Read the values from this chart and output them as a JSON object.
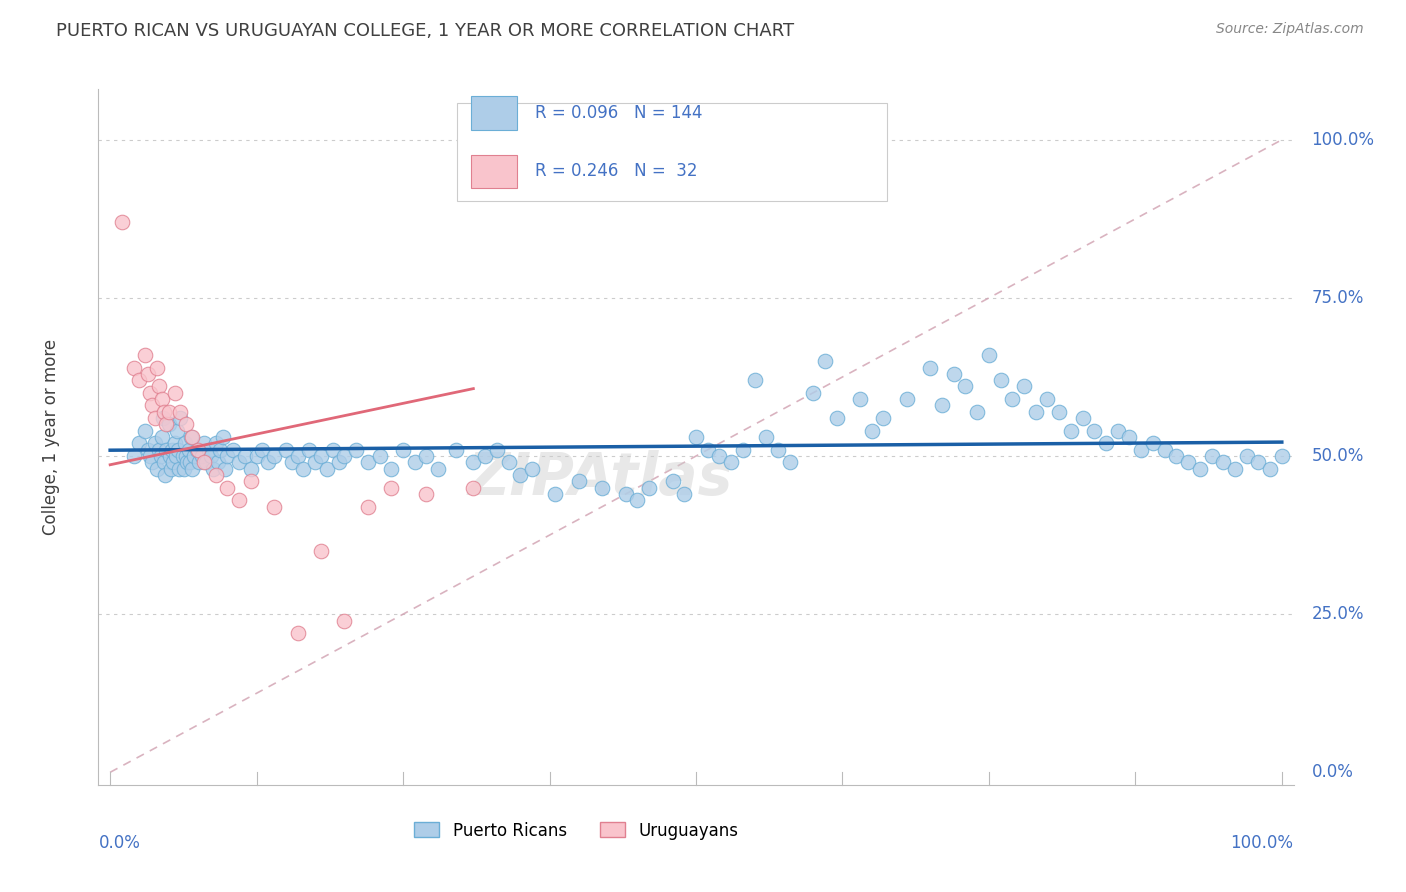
{
  "title": "PUERTO RICAN VS URUGUAYAN COLLEGE, 1 YEAR OR MORE CORRELATION CHART",
  "source": "Source: ZipAtlas.com",
  "ylabel": "College, 1 year or more",
  "ytick_labels": [
    "0.0%",
    "25.0%",
    "50.0%",
    "75.0%",
    "100.0%"
  ],
  "ytick_vals": [
    0.0,
    0.25,
    0.5,
    0.75,
    1.0
  ],
  "watermark": "ZIPAtlas",
  "blue_color_face": "#aecde8",
  "blue_color_edge": "#6baed6",
  "pink_color_face": "#f9c4cc",
  "pink_color_edge": "#e08090",
  "blue_line_color": "#1a5fa6",
  "pink_line_color": "#e06878",
  "diag_line_color": "#d0a0b0",
  "axis_label_color": "#4472c4",
  "grid_color": "#cccccc",
  "blue_x": [
    0.02,
    0.025,
    0.03,
    0.032,
    0.034,
    0.036,
    0.038,
    0.04,
    0.042,
    0.043,
    0.044,
    0.045,
    0.046,
    0.047,
    0.048,
    0.05,
    0.051,
    0.052,
    0.053,
    0.054,
    0.055,
    0.056,
    0.057,
    0.058,
    0.059,
    0.06,
    0.062,
    0.063,
    0.064,
    0.065,
    0.066,
    0.067,
    0.068,
    0.069,
    0.07,
    0.072,
    0.074,
    0.076,
    0.078,
    0.08,
    0.082,
    0.084,
    0.086,
    0.088,
    0.09,
    0.092,
    0.094,
    0.096,
    0.098,
    0.1,
    0.105,
    0.11,
    0.115,
    0.12,
    0.125,
    0.13,
    0.135,
    0.14,
    0.15,
    0.155,
    0.16,
    0.165,
    0.17,
    0.175,
    0.18,
    0.185,
    0.19,
    0.195,
    0.2,
    0.21,
    0.22,
    0.23,
    0.24,
    0.25,
    0.26,
    0.27,
    0.28,
    0.295,
    0.31,
    0.32,
    0.33,
    0.34,
    0.35,
    0.36,
    0.38,
    0.4,
    0.42,
    0.44,
    0.45,
    0.46,
    0.48,
    0.49,
    0.5,
    0.51,
    0.52,
    0.53,
    0.54,
    0.55,
    0.56,
    0.57,
    0.58,
    0.6,
    0.61,
    0.62,
    0.64,
    0.65,
    0.66,
    0.68,
    0.7,
    0.71,
    0.72,
    0.73,
    0.74,
    0.75,
    0.76,
    0.77,
    0.78,
    0.79,
    0.8,
    0.81,
    0.82,
    0.83,
    0.84,
    0.85,
    0.86,
    0.87,
    0.88,
    0.89,
    0.9,
    0.91,
    0.92,
    0.93,
    0.94,
    0.95,
    0.96,
    0.97,
    0.98,
    0.99,
    1.0
  ],
  "blue_y": [
    0.5,
    0.52,
    0.54,
    0.51,
    0.5,
    0.49,
    0.52,
    0.48,
    0.51,
    0.5,
    0.53,
    0.56,
    0.49,
    0.47,
    0.51,
    0.55,
    0.5,
    0.48,
    0.51,
    0.49,
    0.52,
    0.5,
    0.54,
    0.51,
    0.48,
    0.56,
    0.5,
    0.48,
    0.52,
    0.5,
    0.49,
    0.51,
    0.49,
    0.53,
    0.48,
    0.5,
    0.51,
    0.49,
    0.5,
    0.52,
    0.49,
    0.51,
    0.5,
    0.48,
    0.52,
    0.49,
    0.51,
    0.53,
    0.48,
    0.5,
    0.51,
    0.49,
    0.5,
    0.48,
    0.5,
    0.51,
    0.49,
    0.5,
    0.51,
    0.49,
    0.5,
    0.48,
    0.51,
    0.49,
    0.5,
    0.48,
    0.51,
    0.49,
    0.5,
    0.51,
    0.49,
    0.5,
    0.48,
    0.51,
    0.49,
    0.5,
    0.48,
    0.51,
    0.49,
    0.5,
    0.51,
    0.49,
    0.47,
    0.48,
    0.44,
    0.46,
    0.45,
    0.44,
    0.43,
    0.45,
    0.46,
    0.44,
    0.53,
    0.51,
    0.5,
    0.49,
    0.51,
    0.62,
    0.53,
    0.51,
    0.49,
    0.6,
    0.65,
    0.56,
    0.59,
    0.54,
    0.56,
    0.59,
    0.64,
    0.58,
    0.63,
    0.61,
    0.57,
    0.66,
    0.62,
    0.59,
    0.61,
    0.57,
    0.59,
    0.57,
    0.54,
    0.56,
    0.54,
    0.52,
    0.54,
    0.53,
    0.51,
    0.52,
    0.51,
    0.5,
    0.49,
    0.48,
    0.5,
    0.49,
    0.48,
    0.5,
    0.49,
    0.48,
    0.5
  ],
  "pink_x": [
    0.01,
    0.02,
    0.025,
    0.03,
    0.032,
    0.034,
    0.036,
    0.038,
    0.04,
    0.042,
    0.044,
    0.046,
    0.048,
    0.05,
    0.055,
    0.06,
    0.065,
    0.07,
    0.075,
    0.08,
    0.09,
    0.1,
    0.11,
    0.12,
    0.14,
    0.16,
    0.18,
    0.2,
    0.22,
    0.24,
    0.27,
    0.31
  ],
  "pink_y": [
    0.87,
    0.64,
    0.62,
    0.66,
    0.63,
    0.6,
    0.58,
    0.56,
    0.64,
    0.61,
    0.59,
    0.57,
    0.55,
    0.57,
    0.6,
    0.57,
    0.55,
    0.53,
    0.51,
    0.49,
    0.47,
    0.45,
    0.43,
    0.46,
    0.42,
    0.22,
    0.35,
    0.24,
    0.42,
    0.45,
    0.44,
    0.45
  ]
}
